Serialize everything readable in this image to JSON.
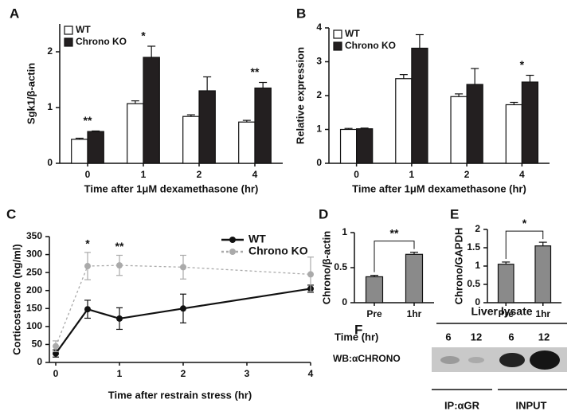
{
  "chart_data": [
    {
      "type": "bar",
      "panel": "A",
      "y_label": "Sgk1/β-actin",
      "x_label": "Time after 1μM dexamethasone (hr)",
      "categories": [
        "0",
        "1",
        "2",
        "4"
      ],
      "series": [
        {
          "name": "WT",
          "color": "#ffffff",
          "values": [
            0.43,
            1.07,
            0.84,
            0.74
          ],
          "errors": [
            0.02,
            0.05,
            0.03,
            0.03
          ]
        },
        {
          "name": "Chrono KO",
          "color": "#231f20",
          "values": [
            0.57,
            1.9,
            1.3,
            1.35
          ],
          "errors": [
            0.01,
            0.2,
            0.25,
            0.1
          ]
        }
      ],
      "ylim": [
        0,
        2.5
      ],
      "yticks": [
        0,
        1,
        2
      ],
      "legend": "upper left",
      "annotations": [
        "**",
        "*",
        "**"
      ]
    },
    {
      "type": "bar",
      "panel": "B",
      "y_label": "Relative expression",
      "x_label": "Time after 1μM dexamethasone (hr)",
      "categories": [
        "0",
        "1",
        "2",
        "4"
      ],
      "series": [
        {
          "name": "WT",
          "color": "#ffffff",
          "values": [
            1.0,
            2.5,
            1.97,
            1.73
          ],
          "errors": [
            0.03,
            0.12,
            0.08,
            0.07
          ]
        },
        {
          "name": "Chrono KO",
          "color": "#231f20",
          "values": [
            1.02,
            3.4,
            2.33,
            2.4
          ],
          "errors": [
            0.02,
            0.4,
            0.47,
            0.2
          ]
        }
      ],
      "ylim": [
        0,
        4
      ],
      "yticks": [
        0,
        1,
        2,
        3,
        4
      ],
      "legend": "upper left",
      "annotations": [
        "*"
      ]
    },
    {
      "type": "line",
      "panel": "C",
      "y_label": "Corticosterone (ng/ml)",
      "x_label": "Time after restrain stress (hr)",
      "x": [
        0,
        0.5,
        1,
        2,
        4
      ],
      "series": [
        {
          "name": "WT",
          "color": "#111111",
          "style": "solid",
          "values": [
            25,
            148,
            122,
            150,
            205
          ],
          "errors": [
            10,
            25,
            30,
            40,
            10
          ]
        },
        {
          "name": "Chrono KO",
          "color": "#aaaaaa",
          "style": "dashed",
          "values": [
            45,
            268,
            270,
            265,
            245
          ],
          "errors": [
            15,
            38,
            28,
            33,
            48
          ]
        }
      ],
      "xlim": [
        -0.1,
        4
      ],
      "xticks": [
        0,
        1,
        2,
        3,
        4
      ],
      "ylim": [
        0,
        350
      ],
      "yticks": [
        0,
        50,
        100,
        150,
        200,
        250,
        300,
        350
      ],
      "legend": "upper right",
      "annotations": [
        "*",
        "**"
      ]
    },
    {
      "type": "bar",
      "panel": "D",
      "y_label": "Chrono/β-actin",
      "categories": [
        "Pre",
        "1hr"
      ],
      "series": [
        {
          "color": "#8a8a8a",
          "values": [
            0.37,
            0.69
          ],
          "errors": [
            0.02,
            0.03
          ]
        }
      ],
      "ylim": [
        0,
        1
      ],
      "yticks": [
        0,
        0.5,
        1
      ],
      "annotations": [
        "**"
      ]
    },
    {
      "type": "bar",
      "panel": "E",
      "y_label": "Chrono/GAPDH",
      "categories": [
        "Pre",
        "1hr"
      ],
      "series": [
        {
          "color": "#8a8a8a",
          "values": [
            1.05,
            1.55
          ],
          "errors": [
            0.06,
            0.1
          ]
        }
      ],
      "ylim": [
        0,
        2
      ],
      "yticks": [
        0,
        0.5,
        1,
        1.5,
        2
      ],
      "annotations": [
        "*"
      ]
    }
  ],
  "blot": {
    "panel": "F",
    "title": "Liver lysate",
    "time_label": "Time (hr)",
    "lanes": [
      "6",
      "12",
      "6",
      "12"
    ],
    "row_label": "WB:αCHRONO",
    "groups": [
      "IP:αGR",
      "INPUT"
    ]
  }
}
